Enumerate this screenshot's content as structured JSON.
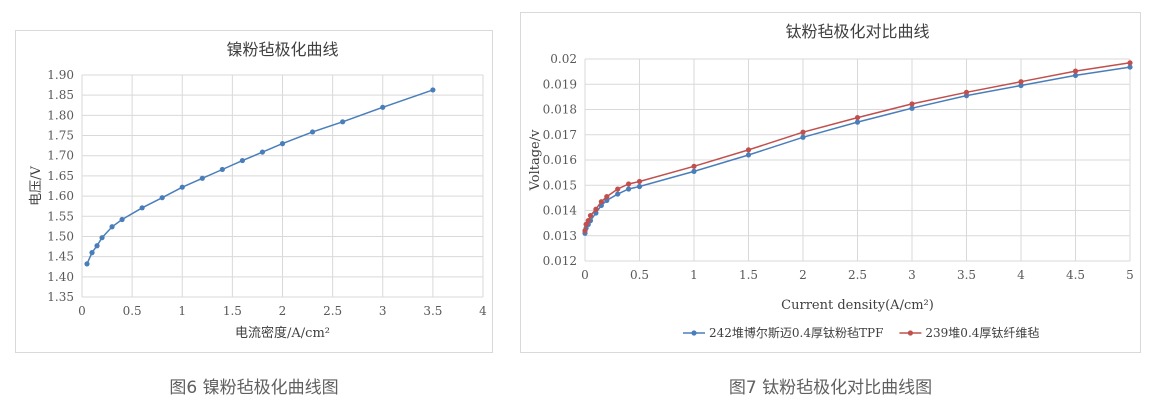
{
  "chart_data": [
    {
      "type": "line",
      "title": "镍粉毡极化曲线",
      "xlabel": "电流密度/A/cm²",
      "ylabel": "电压/V",
      "xlim": [
        0,
        4
      ],
      "ylim": [
        1.35,
        1.9
      ],
      "xticks": [
        "0",
        "0.5",
        "1",
        "1.5",
        "2",
        "2.5",
        "3",
        "3.5",
        "4"
      ],
      "yticks": [
        "1.35",
        "1.40",
        "1.45",
        "1.50",
        "1.55",
        "1.60",
        "1.65",
        "1.70",
        "1.75",
        "1.80",
        "1.85",
        "1.90"
      ],
      "grid": true,
      "series": [
        {
          "color": "#4a7ebb",
          "x": [
            0.05,
            0.1,
            0.15,
            0.2,
            0.3,
            0.4,
            0.6,
            0.8,
            1.0,
            1.2,
            1.4,
            1.6,
            1.8,
            2.0,
            2.3,
            2.6,
            3.0,
            3.5
          ],
          "y": [
            1.432,
            1.46,
            1.477,
            1.497,
            1.524,
            1.542,
            1.571,
            1.596,
            1.622,
            1.644,
            1.666,
            1.688,
            1.709,
            1.73,
            1.759,
            1.784,
            1.82,
            1.863
          ]
        }
      ]
    },
    {
      "type": "line",
      "title": "钛粉毡极化对比曲线",
      "xlabel": "Current density(A/cm²)",
      "ylabel": "Voltage/v",
      "xlim": [
        0,
        5
      ],
      "ylim": [
        0.012,
        0.02
      ],
      "xticks": [
        "0",
        "0.5",
        "1",
        "1.5",
        "2",
        "2.5",
        "3",
        "3.5",
        "4",
        "4.5",
        "5"
      ],
      "yticks": [
        "0.012",
        "0.013",
        "0.014",
        "0.015",
        "0.016",
        "0.017",
        "0.018",
        "0.019",
        "0.02"
      ],
      "grid": true,
      "legend": "bottom",
      "series": [
        {
          "name": "242堆博尔斯迈0.4厚钛粉毡TPF",
          "color": "#4a7ebb",
          "x": [
            0,
            0.01,
            0.03,
            0.05,
            0.1,
            0.15,
            0.2,
            0.3,
            0.4,
            0.5,
            1,
            1.5,
            2,
            2.5,
            3,
            3.5,
            4,
            4.5,
            5
          ],
          "y": [
            0.0131,
            0.0133,
            0.01345,
            0.0136,
            0.0139,
            0.0142,
            0.0144,
            0.01465,
            0.01485,
            0.01495,
            0.01555,
            0.0162,
            0.0169,
            0.0175,
            0.01805,
            0.01855,
            0.01895,
            0.01935,
            0.01968
          ]
        },
        {
          "name": "239堆0.4厚钛纤维毡",
          "color": "#c0504d",
          "x": [
            0,
            0.01,
            0.03,
            0.05,
            0.1,
            0.15,
            0.2,
            0.3,
            0.4,
            0.5,
            1,
            1.5,
            2,
            2.5,
            3,
            3.5,
            4,
            4.5,
            5
          ],
          "y": [
            0.0132,
            0.01345,
            0.0136,
            0.0138,
            0.01405,
            0.01435,
            0.01455,
            0.01485,
            0.01505,
            0.01515,
            0.01575,
            0.0164,
            0.0171,
            0.01768,
            0.01822,
            0.01868,
            0.0191,
            0.01952,
            0.01985
          ]
        }
      ]
    }
  ],
  "captions": [
    "图6 镍粉毡极化曲线图",
    "图7 钛粉毡极化对比曲线图"
  ]
}
